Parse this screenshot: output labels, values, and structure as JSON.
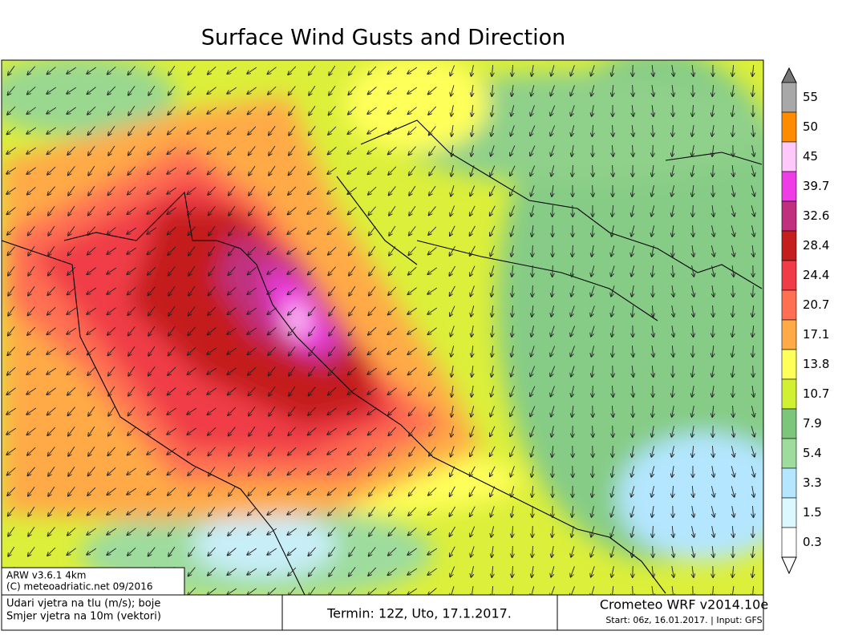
{
  "title": "Surface Wind Gusts and Direction",
  "legend": {
    "levels": [
      {
        "label": "55",
        "color": "#a8a8a8"
      },
      {
        "label": "50",
        "color": "#ff8c00"
      },
      {
        "label": "45",
        "color": "#ffc8fa"
      },
      {
        "label": "39.7",
        "color": "#f03ce6"
      },
      {
        "label": "32.6",
        "color": "#c0307f"
      },
      {
        "label": "28.4",
        "color": "#c41e1e"
      },
      {
        "label": "24.4",
        "color": "#f03c46"
      },
      {
        "label": "20.7",
        "color": "#ff7052"
      },
      {
        "label": "17.1",
        "color": "#ffaa46"
      },
      {
        "label": "13.8",
        "color": "#ffff5a"
      },
      {
        "label": "10.7",
        "color": "#d2f032"
      },
      {
        "label": "7.9",
        "color": "#7cc67c"
      },
      {
        "label": "5.4",
        "color": "#9edc9e"
      },
      {
        "label": "3.3",
        "color": "#b4e6ff"
      },
      {
        "label": "1.5",
        "color": "#dcf8ff"
      },
      {
        "label": "0.3",
        "color": "#ffffff"
      }
    ]
  },
  "model_box": {
    "line1": "ARW v3.6.1 4km",
    "line2": "(C) meteoadriatic.net 09/2016"
  },
  "footer": {
    "left1": "Udari vjetra na tlu (m/s); boje",
    "left2": "Smjer vjetra na 10m (vektori)",
    "termin": "Termin: 12Z, Uto, 17.1.2017.",
    "brand": "Crometeo WRF v2014.10e",
    "start": "Start: 06z, 16.01.2017. | Input: GFS"
  }
}
